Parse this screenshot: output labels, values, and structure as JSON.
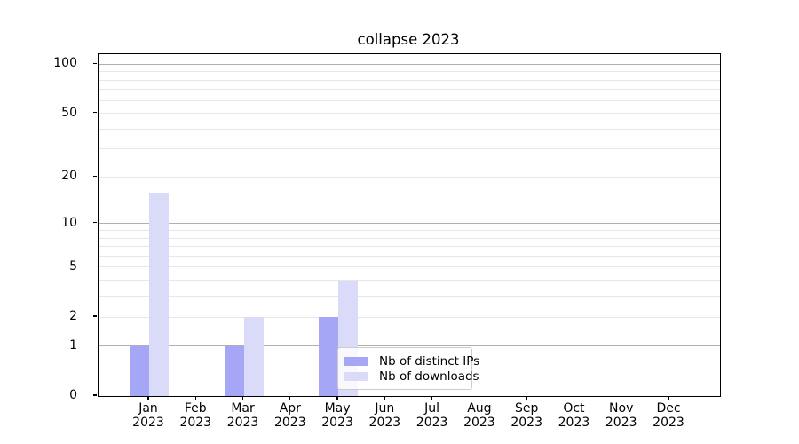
{
  "chart_data": {
    "type": "bar",
    "title": "collapse 2023",
    "x_categories": [
      "Jan",
      "Feb",
      "Mar",
      "Apr",
      "May",
      "Jun",
      "Jul",
      "Aug",
      "Sep",
      "Oct",
      "Nov",
      "Dec"
    ],
    "x_year": "2023",
    "series": [
      {
        "name": "Nb of distinct IPs",
        "color": "#a6a6f7",
        "values": [
          1,
          0,
          1,
          0,
          2,
          0,
          0,
          0,
          0,
          0,
          0,
          0
        ]
      },
      {
        "name": "Nb of downloads",
        "color": "#dadaf9",
        "values": [
          16,
          0,
          2,
          0,
          4,
          0,
          0,
          0,
          0,
          0,
          0,
          0
        ]
      }
    ],
    "y_scale": "log1p",
    "ylim": [
      0,
      115
    ],
    "y_ticks": [
      0,
      1,
      2,
      5,
      10,
      20,
      50,
      100
    ],
    "y_major_gridlines": [
      1,
      10,
      100
    ],
    "y_minor_gridlines": [
      2,
      3,
      4,
      5,
      6,
      7,
      8,
      9,
      20,
      30,
      40,
      50,
      60,
      70,
      80,
      90
    ],
    "grid": "both",
    "legend_position": "lower-center",
    "colors": {
      "spine": "#000000",
      "major_grid": "#b0b0b0",
      "minor_grid": "#e7e7e7",
      "legend_border": "#cccccc",
      "text": "#000000"
    }
  }
}
